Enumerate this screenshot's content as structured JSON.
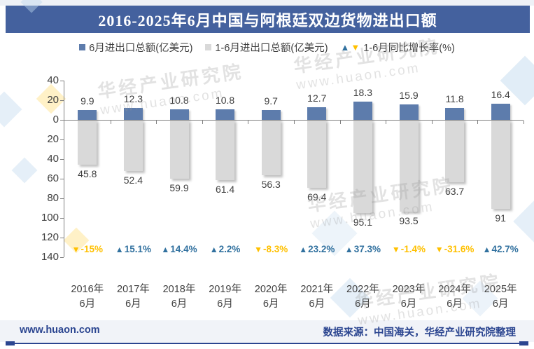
{
  "title": "2016-2025年6月中国与阿根廷双边货物进出口额",
  "legend": {
    "up_glyph": "▲",
    "down_glyph": "▼",
    "square_glyph": "■",
    "items": [
      {
        "label": "6月进出口总额(亿美元)",
        "marker_color": "#5D7CAC"
      },
      {
        "label": "1-6月进出口总额(亿美元)",
        "marker_color": "#D9D9D9"
      },
      {
        "label": "1-6月同比增长率(%)",
        "up_color": "#31719F",
        "down_color": "#FFC000"
      }
    ]
  },
  "chart_data": {
    "type": "bar",
    "subtype": "diverging-vertical-with-growth-labels",
    "title": "2016-2025年6月中国与阿根廷双边货物进出口额",
    "categories": [
      "2016年6月",
      "2017年6月",
      "2018年6月",
      "2019年6月",
      "2020年6月",
      "2021年6月",
      "2022年6月",
      "2023年6月",
      "2024年6月",
      "2025年6月"
    ],
    "category_lines": [
      [
        "2016年",
        "6月"
      ],
      [
        "2017年",
        "6月"
      ],
      [
        "2018年",
        "6月"
      ],
      [
        "2019年",
        "6月"
      ],
      [
        "2020年",
        "6月"
      ],
      [
        "2021年",
        "6月"
      ],
      [
        "2022年",
        "6月"
      ],
      [
        "2023年",
        "6月"
      ],
      [
        "2024年",
        "6月"
      ],
      [
        "2025年",
        "6月"
      ]
    ],
    "series": [
      {
        "name": "6月进出口总额(亿美元)",
        "plotted": "above-zero",
        "color": "#5D7CAC",
        "values": [
          9.9,
          12.3,
          10.8,
          10.8,
          9.7,
          12.7,
          18.3,
          15.9,
          11.8,
          16.4
        ],
        "labels": [
          "9.9",
          "12.3",
          "10.8",
          "10.8",
          "9.7",
          "12.7",
          "18.3",
          "15.9",
          "11.8",
          "16.4"
        ]
      },
      {
        "name": "1-6月进出口总额(亿美元)",
        "plotted": "below-zero",
        "color": "#D9D9D9",
        "values": [
          45.8,
          52.4,
          59.9,
          61.4,
          56.3,
          69.4,
          95.1,
          93.5,
          63.7,
          91
        ],
        "labels": [
          "45.8",
          "52.4",
          "59.9",
          "61.4",
          "56.3",
          "69.4",
          "95.1",
          "93.5",
          "63.7",
          "91"
        ]
      },
      {
        "name": "1-6月同比增长率(%)",
        "plotted": "text-row",
        "positive_color": "#31719F",
        "negative_color": "#FFC000",
        "values": [
          -15,
          15.1,
          14.4,
          2.2,
          -8.3,
          23.2,
          37.3,
          -1.4,
          -31.6,
          42.7
        ],
        "labels": [
          "-15%",
          "15.1%",
          "14.4%",
          "2.2%",
          "-8.3%",
          "23.2%",
          "37.3%",
          "-1.4%",
          "-31.6%",
          "42.7%"
        ]
      }
    ],
    "y_axis": {
      "tick_values": [
        40,
        20,
        0,
        -20,
        -40,
        -60,
        -80,
        -100,
        -120,
        -140
      ],
      "tick_labels": [
        "40",
        "20",
        "0",
        "20",
        "40",
        "60",
        "80",
        "100",
        "120",
        "140"
      ],
      "range_shown": [
        40,
        -140
      ]
    },
    "grid": false,
    "legend_position": "top",
    "xlabel": "",
    "ylabel": ""
  },
  "watermark": {
    "name": "华经产业研究院",
    "url": "www.huaon.com"
  },
  "footer": {
    "site": "www.huaon.com",
    "source": "数据来源：中国海关，华经产业研究院整理"
  },
  "colors": {
    "title_bg": "#44619E",
    "title_text": "#FFFFFF",
    "bar_june": "#5D7CAC",
    "bar_h1": "#D9D9D9",
    "positive": "#31719F",
    "negative": "#FFC000",
    "axis": "#808080",
    "value_label": "#404040",
    "footer_text": "#2B4590",
    "footer_bg": "#F1F3F8"
  }
}
